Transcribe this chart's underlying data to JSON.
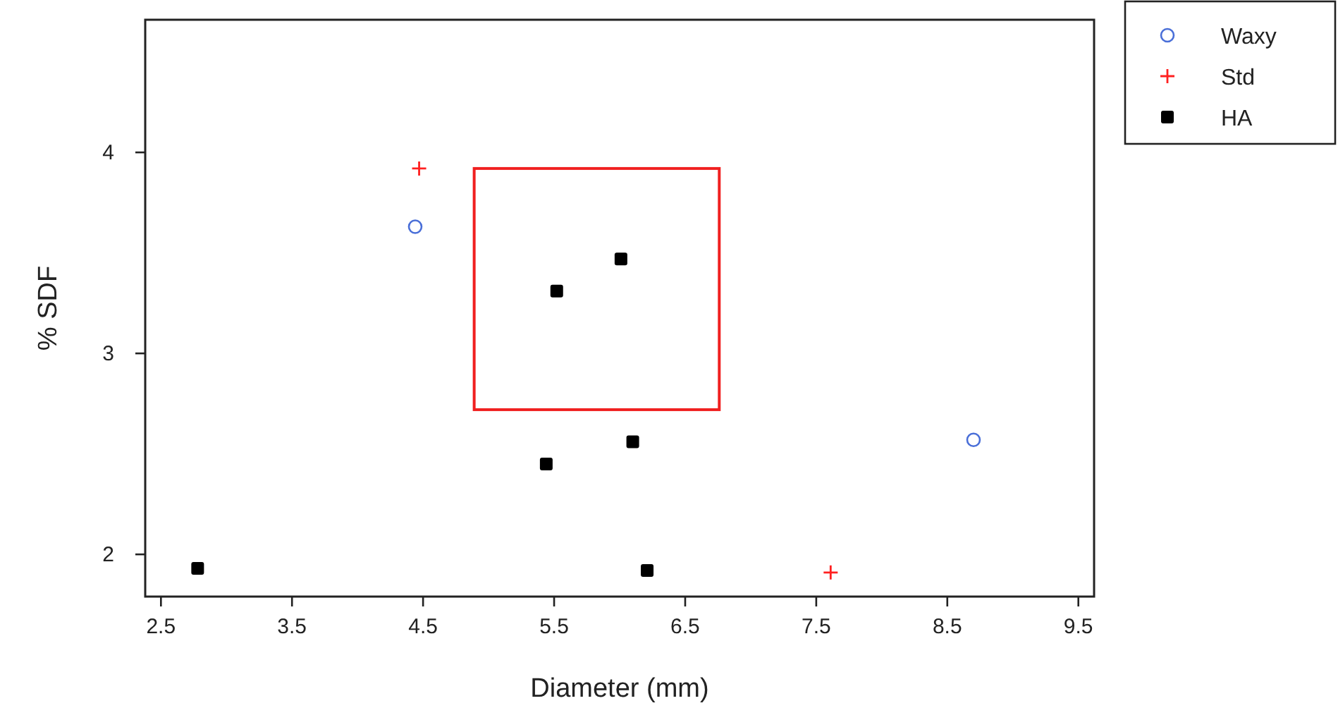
{
  "chart_data": {
    "type": "scatter",
    "xlabel": "Diameter (mm)",
    "ylabel": "% SDF",
    "xlim": [
      2.38,
      9.62
    ],
    "xticks": [
      2.5,
      3.5,
      4.5,
      5.5,
      6.5,
      7.5,
      8.5,
      9.5
    ],
    "ylim": [
      1.79,
      4.66
    ],
    "yticks": [
      2,
      3,
      4
    ],
    "grid": false,
    "legend": "top right",
    "series": [
      {
        "name": "Waxy",
        "color": "#4a6fd8",
        "marker": "circle",
        "x": [
          4.44,
          8.7
        ],
        "values": [
          3.63,
          2.57
        ]
      },
      {
        "name": "Std",
        "color": "#ff2020",
        "marker": "cross",
        "x": [
          4.47,
          7.61
        ],
        "values": [
          3.92,
          1.91
        ]
      },
      {
        "name": "HA",
        "color": "#000000",
        "marker": "square",
        "x": [
          2.78,
          5.52,
          6.01,
          5.44,
          6.1,
          6.21
        ],
        "values": [
          1.93,
          3.31,
          3.47,
          2.45,
          2.56,
          1.92
        ]
      }
    ]
  }
}
